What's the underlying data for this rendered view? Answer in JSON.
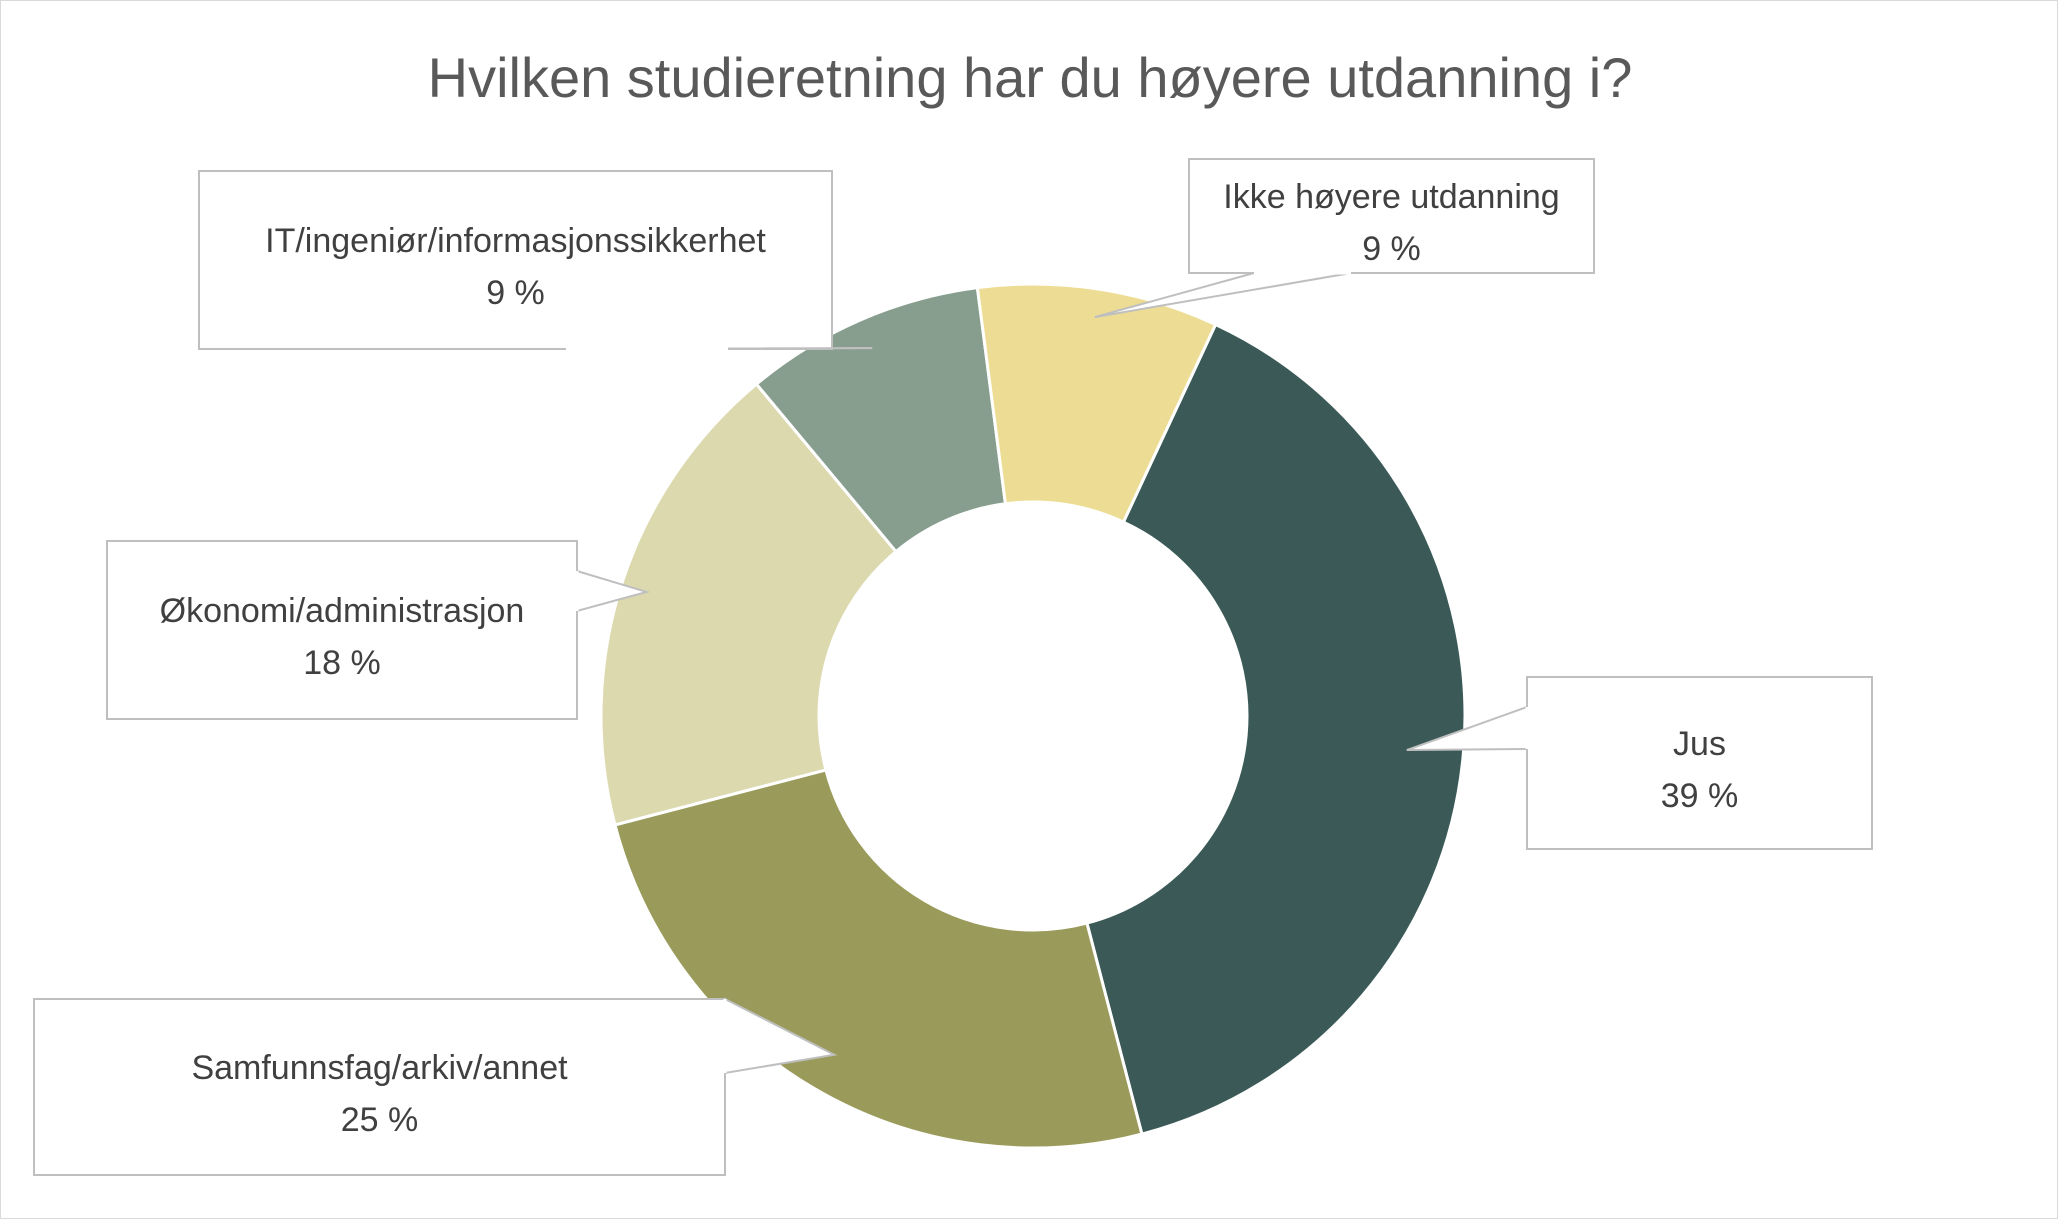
{
  "chart_data": {
    "type": "pie",
    "variant": "doughnut",
    "title": "Hvilken studieretning har du høyere utdanning i?",
    "unit": "%",
    "start_angle_deg": 25,
    "direction": "clockwise",
    "legend": "none",
    "slices": [
      {
        "label": "Jus",
        "value": 39,
        "value_label": "39 %",
        "color": "#3b5a57"
      },
      {
        "label": "Samfunnsfag/arkiv/annet",
        "value": 25,
        "value_label": "25 %",
        "color": "#9a9b5b"
      },
      {
        "label": "Økonomi/administrasjon",
        "value": 18,
        "value_label": "18 %",
        "color": "#dcd9ae"
      },
      {
        "label": "IT/ingeniør/informasjonssikkerhet",
        "value": 9,
        "value_label": "9 %",
        "color": "#879e8f"
      },
      {
        "label": "Ikke høyere utdanning",
        "value": 9,
        "value_label": "9 %",
        "color": "#eddd94"
      }
    ]
  }
}
